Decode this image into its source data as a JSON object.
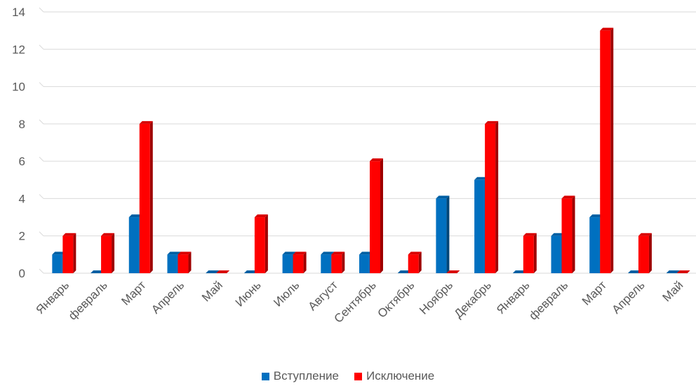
{
  "chart_data": {
    "type": "bar",
    "title": "",
    "xlabel": "",
    "ylabel": "",
    "ylim": [
      0,
      14
    ],
    "yticks": [
      0,
      2,
      4,
      6,
      8,
      10,
      12,
      14
    ],
    "grid": true,
    "legend_position": "bottom",
    "categories": [
      "Январь",
      "февраль",
      "Март",
      "Апрель",
      "Май",
      "Июнь",
      "Июль",
      "Август",
      "Сентябрь",
      "Октябрь",
      "Ноябрь",
      "Декабрь",
      "Январь",
      "февраль",
      "Март",
      "Апрель",
      "Май"
    ],
    "series": [
      {
        "name": "Вступление",
        "color": "#0070C0",
        "values": [
          1,
          0,
          3,
          1,
          0,
          0,
          1,
          1,
          1,
          0,
          4,
          5,
          0,
          2,
          3,
          0,
          0
        ]
      },
      {
        "name": "Исключение",
        "color": "#FF0000",
        "values": [
          2,
          2,
          8,
          1,
          0,
          3,
          1,
          1,
          6,
          1,
          0,
          8,
          2,
          4,
          13,
          2,
          0
        ]
      }
    ]
  }
}
